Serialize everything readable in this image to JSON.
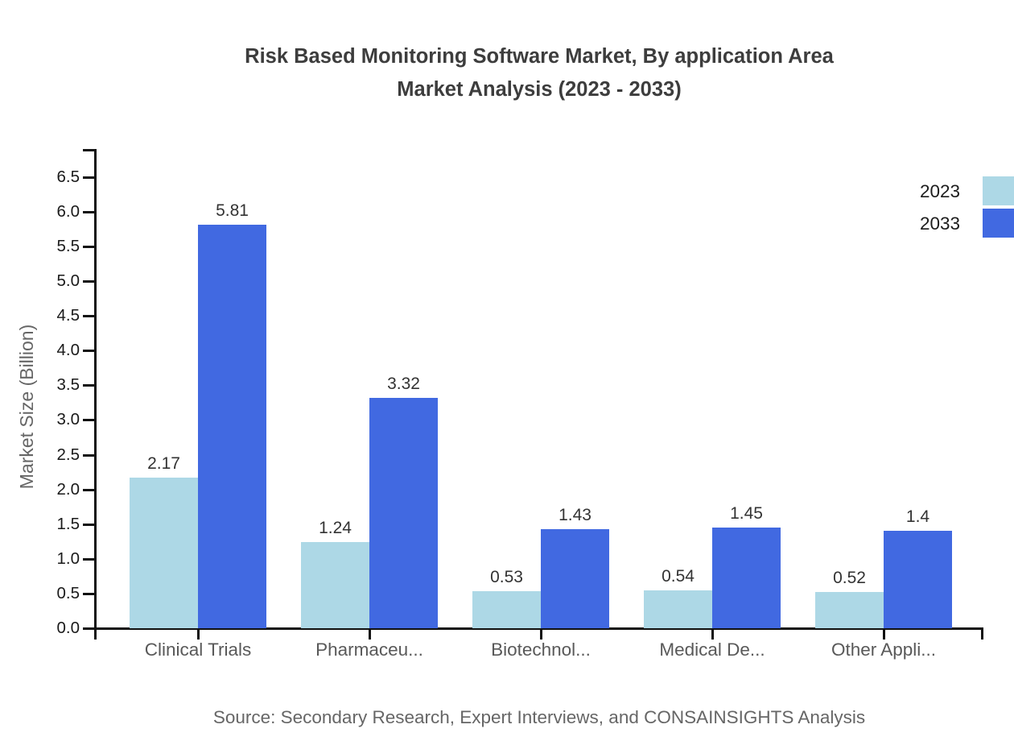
{
  "title": {
    "line1": "Risk Based Monitoring Software Market, By application Area",
    "line2": "Market Analysis (2023 - 2033)"
  },
  "source": "Source: Secondary Research, Expert Interviews, and CONSAINSIGHTS Analysis",
  "legend": {
    "items": [
      {
        "label": "2023",
        "color": "#ADD8E6"
      },
      {
        "label": "2033",
        "color": "#4169E1"
      }
    ]
  },
  "chart_data": {
    "type": "bar",
    "title": "Risk Based Monitoring Software Market, By application Area Market Analysis (2023 - 2033)",
    "categories": [
      "Clinical Trials",
      "Pharmaceu...",
      "Biotechnol...",
      "Medical De...",
      "Other Appli..."
    ],
    "series": [
      {
        "name": "2023",
        "color": "#ADD8E6",
        "values": [
          2.17,
          1.24,
          0.53,
          0.54,
          0.52
        ],
        "labels": [
          "2.17",
          "1.24",
          "0.53",
          "0.54",
          "0.52"
        ]
      },
      {
        "name": "2033",
        "color": "#4169E1",
        "values": [
          5.81,
          3.32,
          1.43,
          1.45,
          1.4
        ],
        "labels": [
          "5.81",
          "3.32",
          "1.43",
          "1.45",
          "1.4"
        ]
      }
    ],
    "xlabel": "",
    "ylabel": "Market Size (Billion)",
    "ylim": [
      0,
      7
    ],
    "yticks": [
      "0.0",
      "0.5",
      "1.0",
      "1.5",
      "2.0",
      "2.5",
      "3.0",
      "3.5",
      "4.0",
      "4.5",
      "5.0",
      "5.5",
      "6.0",
      "6.5"
    ],
    "grid": false,
    "legend_position": "top-right"
  }
}
